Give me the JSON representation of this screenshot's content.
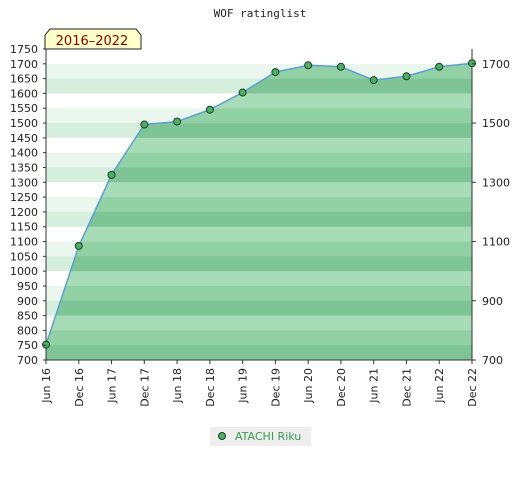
{
  "chart_data": {
    "type": "area",
    "title": "WOF ratinglist",
    "period_label": "2016–2022",
    "x": [
      "Jun 16",
      "Dec 16",
      "Jun 17",
      "Dec 17",
      "Jun 18",
      "Dec 18",
      "Jun 19",
      "Dec 19",
      "Jun 20",
      "Dec 20",
      "Jun 21",
      "Dec 21",
      "Jun 22",
      "Dec 22"
    ],
    "series": [
      {
        "name": "ATACHI Riku",
        "values": [
          752,
          1085,
          1325,
          1495,
          1505,
          1545,
          1603,
          1672,
          1695,
          1690,
          1645,
          1658,
          1690,
          1702
        ]
      }
    ],
    "ylim": [
      700,
      1750
    ],
    "y_ticks_left": [
      "700",
      "750",
      "800",
      "850",
      "900",
      "950",
      "1000",
      "1050",
      "1100",
      "1150",
      "1200",
      "1250",
      "1300",
      "1350",
      "1400",
      "1450",
      "1500",
      "1550",
      "1600",
      "1650",
      "1700",
      "1750"
    ],
    "y_ticks_right": [
      "700",
      "900",
      "1100",
      "1300",
      "1500",
      "1700"
    ],
    "xlabel": "",
    "ylabel": "",
    "legend_position": "bottom-center",
    "grid": true,
    "colors": {
      "line": "#5aa0d0",
      "fill_dark": "#7cc295",
      "fill_light": "#a6dab6",
      "marker": "#4caf66",
      "legend_text": "#3a9a50",
      "label_box": "#ffffcc",
      "label_text": "#8b0000"
    }
  }
}
